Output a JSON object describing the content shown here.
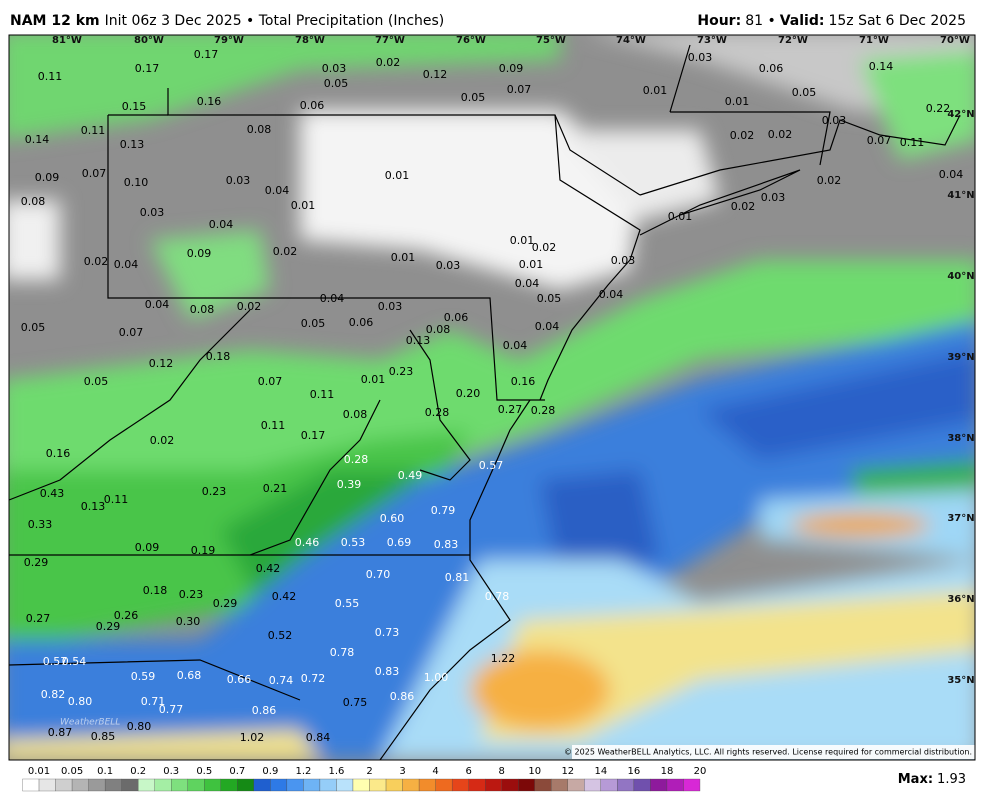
{
  "header": {
    "model": "NAM 12 km",
    "info": "Init 06z 3 Dec 2025 • Total Precipitation (Inches)",
    "hour_label": "Hour:",
    "hour": "81 •",
    "valid_label": "Valid:",
    "valid": "15z Sat 6 Dec 2025"
  },
  "longitudes": [
    "81°W",
    "80°W",
    "79°W",
    "78°W",
    "77°W",
    "76°W",
    "75°W",
    "74°W",
    "73°W",
    "72°W",
    "71°W",
    "70°W"
  ],
  "latitudes": [
    "42°N",
    "41°N",
    "40°N",
    "39°N",
    "38°N",
    "37°N",
    "36°N",
    "35°N"
  ],
  "points": [
    "0.11",
    "0.17",
    "0.17",
    "0.03",
    "0.02",
    "0.05",
    "0.12",
    "0.09",
    "0.07",
    "0.05",
    "0.03",
    "0.06",
    "0.05",
    "0.01",
    "0.01",
    "0.14",
    "0.15",
    "0.16",
    "0.06",
    "0.08",
    "0.11",
    "0.14",
    "0.13",
    "0.02",
    "0.02",
    "0.03",
    "0.07",
    "0.11",
    "0.22",
    "0.09",
    "0.07",
    "0.10",
    "0.03",
    "0.04",
    "0.01",
    "0.01",
    "0.08",
    "0.03",
    "0.04",
    "0.02",
    "0.04",
    "0.01",
    "0.02",
    "0.03",
    "0.09",
    "0.02",
    "0.01",
    "0.02",
    "0.02",
    "0.04",
    "0.01",
    "0.03",
    "0.01",
    "0.03",
    "0.04",
    "0.04",
    "0.08",
    "0.02",
    "0.04",
    "0.03",
    "0.05",
    "0.04",
    "0.05",
    "0.07",
    "0.05",
    "0.06",
    "0.08",
    "0.06",
    "0.04",
    "0.13",
    "0.04",
    "0.18",
    "0.12",
    "0.23",
    "0.01",
    "0.16",
    "0.05",
    "0.07",
    "0.11",
    "0.20",
    "0.08",
    "0.28",
    "0.27",
    "0.28",
    "0.11",
    "0.17",
    "0.02",
    "0.16",
    "0.28",
    "0.49",
    "0.57",
    "0.39",
    "0.43",
    "0.23",
    "0.21",
    "0.13",
    "0.11",
    "0.79",
    "0.60",
    "0.33",
    "0.46",
    "0.53",
    "0.69",
    "0.83",
    "0.09",
    "0.19",
    "0.29",
    "0.42",
    "0.70",
    "0.81",
    "0.18",
    "0.23",
    "0.42",
    "0.55",
    "0.78",
    "0.29",
    "0.27",
    "0.26",
    "0.30",
    "0.29",
    "0.52",
    "0.73",
    "0.78",
    "1.22",
    "0.57",
    "0.54",
    "0.59",
    "0.68",
    "0.66",
    "0.74",
    "0.72",
    "0.83",
    "1.00",
    "0.82",
    "0.80",
    "0.86",
    "0.71",
    "0.77",
    "0.75",
    "0.86",
    "0.80",
    "0.87",
    "0.85",
    "1.02",
    "0.84"
  ],
  "colorbar": {
    "labels": [
      "0.01",
      "0.05",
      "0.1",
      "0.2",
      "0.3",
      "0.5",
      "0.7",
      "0.9",
      "1.2",
      "1.6",
      "2",
      "3",
      "4",
      "6",
      "8",
      "10",
      "12",
      "14",
      "16",
      "18",
      "20"
    ]
  },
  "max": {
    "label": "Max:",
    "value": "1.93"
  },
  "copyright": "© 2025 WeatherBELL Analytics, LLC. All rights reserved. License required for commercial distribution.",
  "logo": "WeatherBELL"
}
